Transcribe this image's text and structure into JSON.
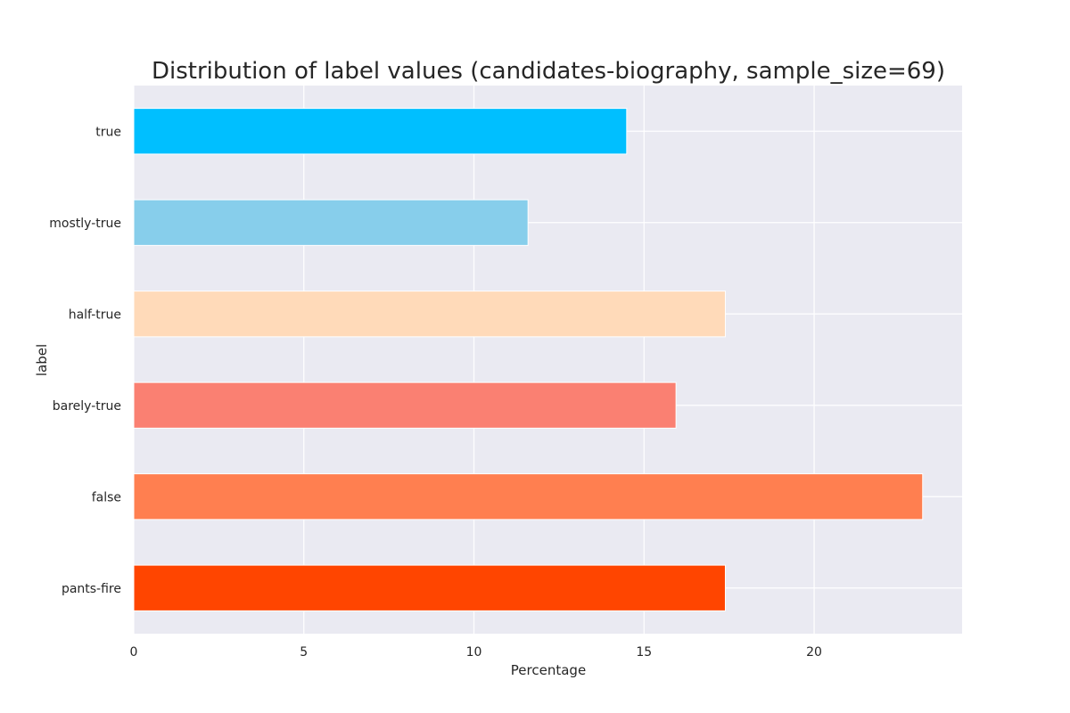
{
  "chart_data": {
    "type": "bar",
    "orientation": "horizontal",
    "title": "Distribution of label values (candidates-biography, sample_size=69)",
    "xlabel": "Percentage",
    "ylabel": "label",
    "categories": [
      "true",
      "mostly-true",
      "half-true",
      "barely-true",
      "false",
      "pants-fire"
    ],
    "values": [
      14.49,
      11.59,
      17.39,
      15.94,
      23.19,
      17.39
    ],
    "bar_colors": [
      "#00bfff",
      "#87ceeb",
      "#ffdab9",
      "#fa8072",
      "#ff7f50",
      "#ff4500"
    ],
    "xticks": [
      0,
      5,
      10,
      15,
      20
    ],
    "xlim": [
      0,
      24.35
    ],
    "grid": true,
    "style": {
      "background": "#eaeaf2",
      "grid_color": "#ffffff"
    }
  }
}
